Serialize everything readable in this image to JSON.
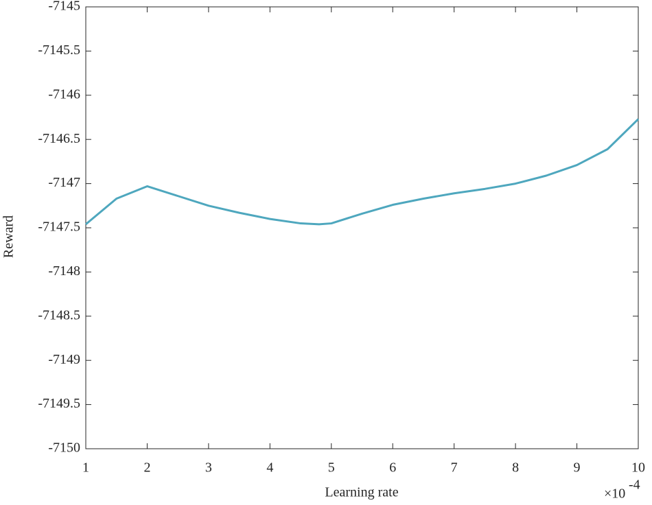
{
  "chart_data": {
    "type": "line",
    "x_label": "Learning rate",
    "y_label": "Reward",
    "x_scale_base": "×10",
    "x_scale_exponent": "-4",
    "x": [
      1,
      1.5,
      2,
      2.5,
      3,
      3.5,
      4,
      4.5,
      4.8,
      5,
      5.5,
      6,
      6.5,
      7,
      7.5,
      8,
      8.5,
      9,
      9.5,
      10
    ],
    "series": [
      {
        "color": "#4ea7be",
        "values": [
          -7147.46,
          -7147.17,
          -7147.03,
          -7147.14,
          -7147.25,
          -7147.33,
          -7147.4,
          -7147.45,
          -7147.46,
          -7147.45,
          -7147.34,
          -7147.24,
          -7147.17,
          -7147.11,
          -7147.06,
          -7147.0,
          -7146.91,
          -7146.79,
          -7146.61,
          -7146.27
        ]
      }
    ],
    "xlim": [
      1,
      10
    ],
    "xticks": [
      1,
      2,
      3,
      4,
      5,
      6,
      7,
      8,
      9,
      10
    ],
    "ylim": [
      -7150,
      -7145
    ],
    "yticks": [
      -7150,
      -7149.5,
      -7149,
      -7148.5,
      -7148,
      -7147.5,
      -7147,
      -7146.5,
      -7146,
      -7145.5,
      -7145
    ],
    "grid": false
  }
}
